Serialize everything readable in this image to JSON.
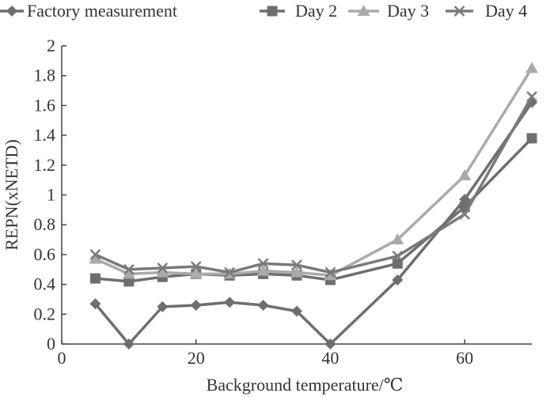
{
  "chart_data": {
    "type": "line",
    "title": "",
    "xlabel": "Background temperature/℃",
    "ylabel": "REPN(xNETD)",
    "xlim": [
      0,
      70
    ],
    "ylim": [
      0,
      2
    ],
    "x_ticks": [
      0,
      20,
      40,
      60
    ],
    "y_ticks": [
      0,
      0.2,
      0.4,
      0.6,
      0.8,
      1,
      1.2,
      1.4,
      1.6,
      1.8,
      2
    ],
    "x_tick_labels": [
      "0",
      "20",
      "40",
      "60"
    ],
    "y_tick_labels": [
      "0",
      "0.2",
      "0.4",
      "0.6",
      "0.8",
      "1",
      "1.2",
      "1.4",
      "1.6",
      "1.8",
      "2"
    ],
    "grid": false,
    "legend_position": "top",
    "series": [
      {
        "name": "Factory measurement",
        "marker": "diamond",
        "color": "#6e6e6e",
        "x": [
          5,
          10,
          15,
          20,
          25,
          30,
          35,
          40,
          50,
          60,
          70
        ],
        "y": [
          0.27,
          0.0,
          0.25,
          0.26,
          0.28,
          0.26,
          0.22,
          0.0,
          0.43,
          0.97,
          1.62
        ]
      },
      {
        "name": "Day 2",
        "marker": "square",
        "color": "#6e6e6e",
        "x": [
          5,
          10,
          15,
          20,
          25,
          30,
          35,
          40,
          50,
          60,
          70
        ],
        "y": [
          0.44,
          0.42,
          0.45,
          0.47,
          0.46,
          0.47,
          0.46,
          0.43,
          0.54,
          0.92,
          1.38
        ]
      },
      {
        "name": "Day 3",
        "marker": "triangle",
        "color": "#aaaaaa",
        "x": [
          5,
          10,
          15,
          20,
          25,
          30,
          35,
          40,
          50,
          60,
          70
        ],
        "y": [
          0.57,
          0.47,
          0.48,
          0.47,
          0.47,
          0.49,
          0.48,
          0.46,
          0.7,
          1.13,
          1.85
        ]
      },
      {
        "name": "Day 4",
        "marker": "x",
        "color": "#7a7a7a",
        "x": [
          5,
          10,
          15,
          20,
          25,
          30,
          35,
          40,
          50,
          60,
          70
        ],
        "y": [
          0.6,
          0.5,
          0.51,
          0.52,
          0.48,
          0.54,
          0.53,
          0.48,
          0.59,
          0.87,
          1.66
        ]
      }
    ]
  }
}
